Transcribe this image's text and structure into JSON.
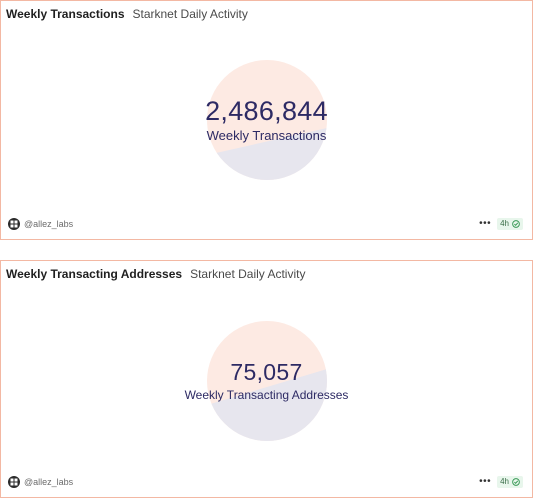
{
  "cards": [
    {
      "title": "Weekly Transactions",
      "subtitle": "Starknet Daily Activity",
      "value": "2,486,844",
      "label": "Weekly Transactions",
      "author": "@allez_labs",
      "more": "•••",
      "refresh": "4h"
    },
    {
      "title": "Weekly Transacting Addresses",
      "subtitle": "Starknet Daily Activity",
      "value": "75,057",
      "label": "Weekly Transacting Addresses",
      "author": "@allez_labs",
      "more": "•••",
      "refresh": "4h"
    }
  ],
  "colors": {
    "border": "#f3b8a3",
    "disc_top": "#fdeae3",
    "disc_bottom": "#e7e6ee",
    "value_text": "#2d2a64",
    "badge_bg": "#e8f6ec",
    "badge_check": "#3a9a57"
  },
  "icons": {
    "avatar": "grid-logo-icon",
    "status": "check-circle-icon",
    "more": "more-dots-icon"
  }
}
